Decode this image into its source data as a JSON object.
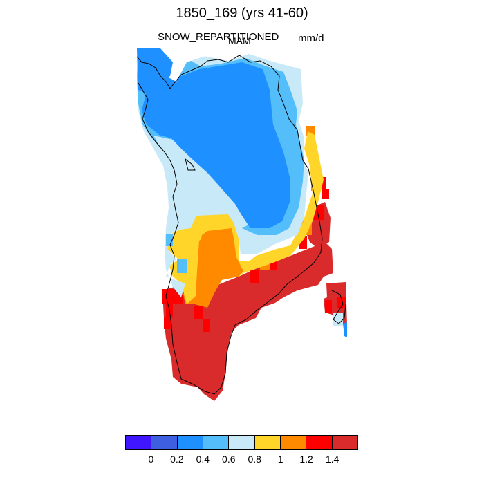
{
  "title": "1850_169 (yrs 41-60)",
  "variable": "SNOW_REPARTITIONED",
  "season": "MAM",
  "units": "mm/d",
  "colorbar": {
    "colors": [
      "#4016ff",
      "#3d5fe0",
      "#1e90ff",
      "#53befa",
      "#c8e9f8",
      "#ffd52a",
      "#ff8a00",
      "#ff0000",
      "#d92b2b"
    ],
    "labels": [
      "0",
      "0.2",
      "0.4",
      "0.6",
      "0.8",
      "1",
      "1.2",
      "1.4"
    ]
  }
}
